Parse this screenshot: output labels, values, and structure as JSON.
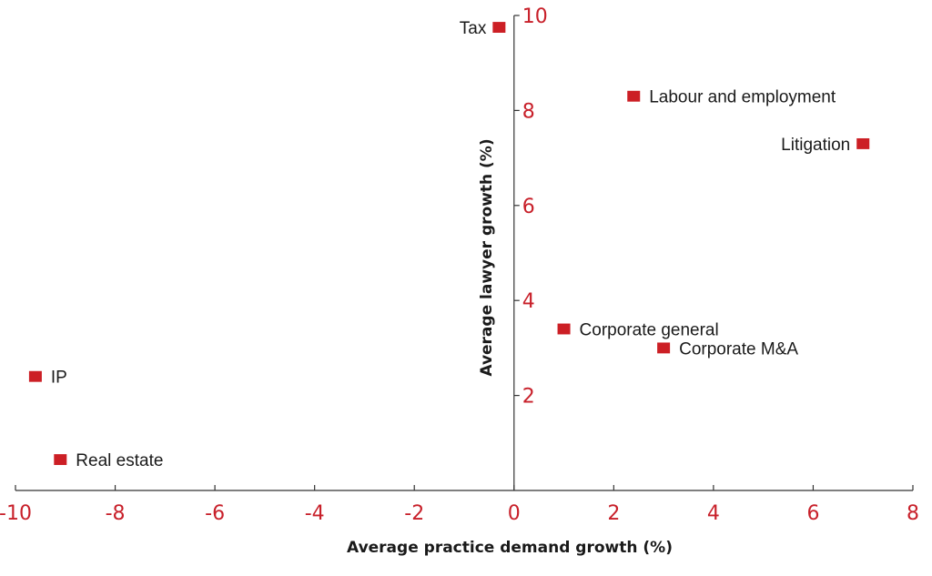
{
  "chart_data": {
    "type": "scatter",
    "title": "",
    "xlabel": "Average practice demand growth (%)",
    "ylabel": "Average lawyer growth (%)",
    "xlim": [
      -10,
      8
    ],
    "ylim": [
      0,
      10
    ],
    "xticks": [
      -10,
      -8,
      -6,
      -4,
      -2,
      0,
      2,
      4,
      6,
      8
    ],
    "yticks": [
      2,
      4,
      6,
      8,
      10
    ],
    "grid": false,
    "legend": "none",
    "marker": "square",
    "marker_color": "#cc1f25",
    "tick_color": "#c8202a",
    "points": [
      {
        "label": "Tax",
        "x": -0.3,
        "y": 9.75,
        "label_side": "left"
      },
      {
        "label": "Labour and employment",
        "x": 2.4,
        "y": 8.3,
        "label_side": "right"
      },
      {
        "label": "Litigation",
        "x": 7.0,
        "y": 7.3,
        "label_side": "left"
      },
      {
        "label": "Corporate general",
        "x": 1.0,
        "y": 3.4,
        "label_side": "right"
      },
      {
        "label": "Corporate M&A",
        "x": 3.0,
        "y": 3.0,
        "label_side": "right"
      },
      {
        "label": "IP",
        "x": -9.6,
        "y": 2.4,
        "label_side": "right"
      },
      {
        "label": "Real estate",
        "x": -9.1,
        "y": 0.65,
        "label_side": "right"
      }
    ]
  }
}
